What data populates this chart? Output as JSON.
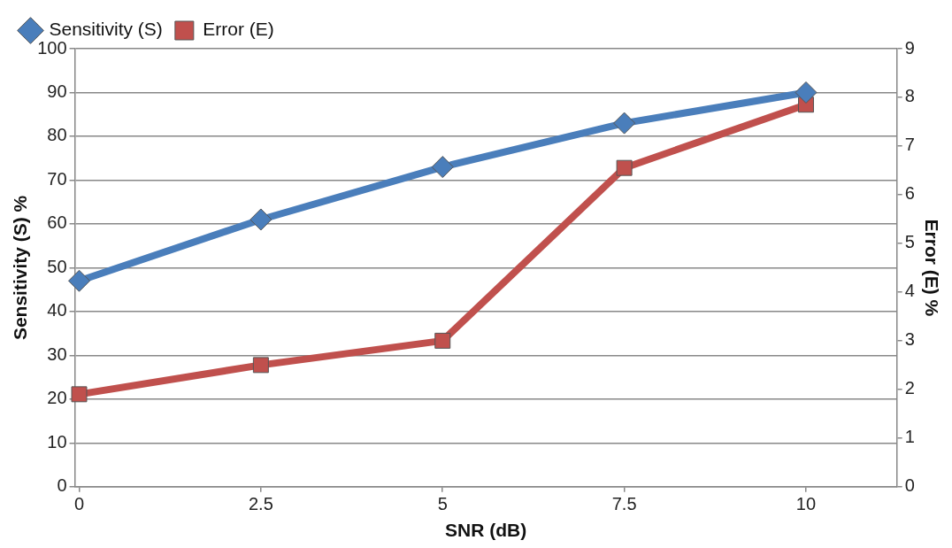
{
  "chart_data": {
    "type": "line",
    "xlabel": "SNR (dB)",
    "ylabel": "Sensitivity (S) %",
    "y2label": "Error (E) %",
    "x": [
      0,
      2.5,
      5,
      7.5,
      10
    ],
    "xlim": [
      -0.06,
      11.25
    ],
    "xticks": [
      0,
      2.5,
      5,
      7.5,
      10
    ],
    "ylim": [
      0,
      100
    ],
    "yticks": [
      0,
      10,
      20,
      30,
      40,
      50,
      60,
      70,
      80,
      90,
      100
    ],
    "y2lim": [
      0,
      9
    ],
    "y2ticks": [
      0,
      1,
      2,
      3,
      4,
      5,
      6,
      7,
      8,
      9
    ],
    "grid": "y",
    "legend": "top left",
    "series": [
      {
        "name": "Sensitivity (S)",
        "color": "#4a7ebb",
        "marker": "diamond",
        "values": [
          47,
          61,
          73,
          83,
          90
        ]
      },
      {
        "name": "Error (E)",
        "color": "#c0504d",
        "marker": "square",
        "axis": "y2",
        "values": [
          1.9,
          2.5,
          3.0,
          6.55,
          7.85
        ]
      }
    ]
  }
}
